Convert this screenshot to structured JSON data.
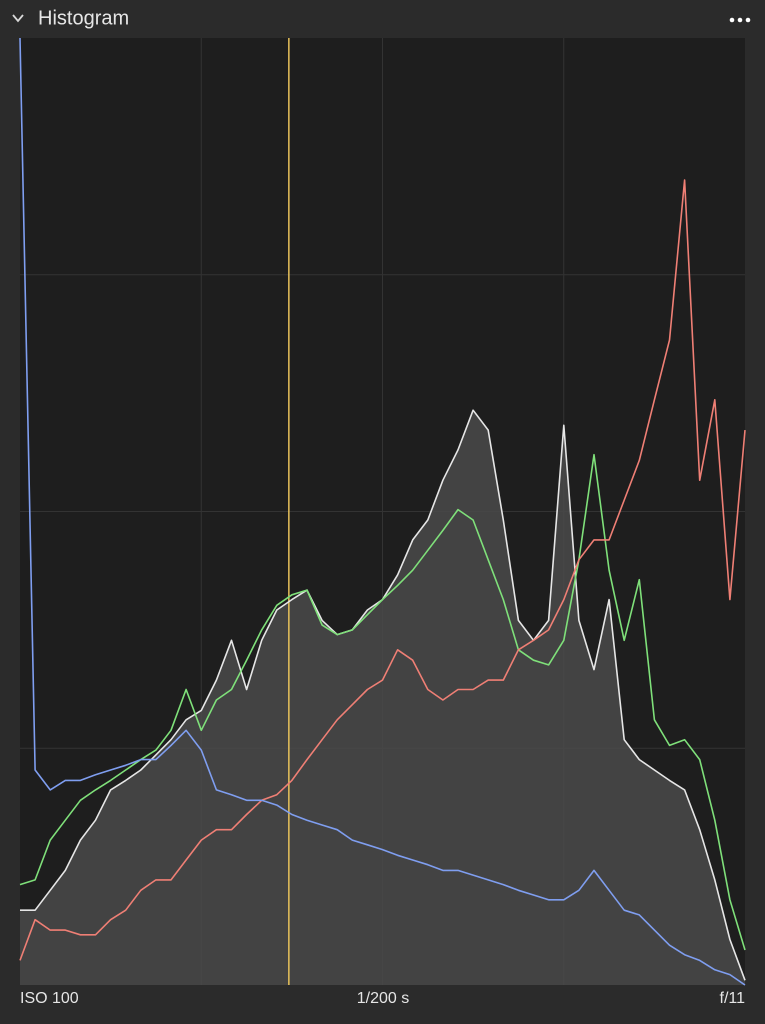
{
  "panel": {
    "title": "Histogram"
  },
  "footer": {
    "iso": "ISO 100",
    "shutter": "1/200 s",
    "aperture": "f/11"
  },
  "chart_data": {
    "type": "line",
    "x": [
      0,
      1,
      2,
      3,
      4,
      5,
      6,
      7,
      8,
      9,
      10,
      11,
      12,
      13,
      14,
      15,
      16,
      17,
      18,
      19,
      20,
      21,
      22,
      23,
      24,
      25,
      26,
      27,
      28,
      29,
      30,
      31,
      32,
      33,
      34,
      35,
      36,
      37,
      38,
      39,
      40,
      41,
      42,
      43,
      44,
      45,
      46,
      47,
      48
    ],
    "xlim": [
      0,
      48
    ],
    "ylim": [
      0,
      100
    ],
    "xticks": [
      12,
      24,
      36
    ],
    "yticks": [
      25,
      50,
      75
    ],
    "grid": true,
    "reference_line": {
      "x": 17.8,
      "color": "#e8c25a"
    },
    "series": [
      {
        "color": "#e6e6e6",
        "fill": "#4a4a4a",
        "values": [
          7.9,
          7.9,
          10.0,
          12.1,
          15.3,
          17.4,
          20.6,
          21.6,
          22.7,
          24.3,
          25.9,
          28.0,
          29.0,
          32.2,
          36.4,
          31.2,
          36.4,
          39.6,
          40.7,
          41.7,
          38.5,
          37.0,
          37.5,
          39.6,
          40.7,
          43.3,
          47.0,
          49.1,
          53.3,
          56.5,
          60.7,
          58.6,
          49.1,
          38.5,
          36.4,
          38.5,
          59.1,
          38.5,
          33.3,
          40.7,
          25.9,
          23.8,
          22.7,
          21.6,
          20.6,
          16.4,
          11.1,
          4.8,
          0.5
        ]
      },
      {
        "color": "#7fe07a",
        "values": [
          10.6,
          11.1,
          15.3,
          17.4,
          19.5,
          20.6,
          21.6,
          22.7,
          23.8,
          24.8,
          26.9,
          31.2,
          26.9,
          30.1,
          31.2,
          34.3,
          37.5,
          40.1,
          41.2,
          41.7,
          38.0,
          37.0,
          37.5,
          39.1,
          40.7,
          42.2,
          43.8,
          45.9,
          48.0,
          50.2,
          49.1,
          44.9,
          40.7,
          35.4,
          34.3,
          33.8,
          36.4,
          44.9,
          56.0,
          43.8,
          36.4,
          42.8,
          28.0,
          25.3,
          25.9,
          23.8,
          17.4,
          9.0,
          3.7
        ]
      },
      {
        "color": "#ef7f75",
        "values": [
          2.6,
          6.9,
          5.8,
          5.8,
          5.3,
          5.3,
          6.9,
          7.9,
          10.0,
          11.1,
          11.1,
          13.2,
          15.3,
          16.4,
          16.4,
          18.0,
          19.5,
          20.1,
          21.6,
          23.8,
          25.9,
          28.0,
          29.6,
          31.2,
          32.2,
          35.4,
          34.3,
          31.2,
          30.1,
          31.2,
          31.2,
          32.2,
          32.2,
          35.4,
          36.4,
          37.5,
          40.7,
          44.9,
          47.0,
          47.0,
          51.2,
          55.4,
          61.8,
          68.1,
          85.0,
          53.3,
          61.8,
          40.7,
          58.6
        ]
      },
      {
        "color": "#7f9ef0",
        "values": [
          100,
          22.7,
          20.6,
          21.6,
          21.6,
          22.2,
          22.7,
          23.2,
          23.8,
          23.8,
          25.3,
          26.9,
          24.8,
          20.6,
          20.1,
          19.5,
          19.5,
          19.0,
          18.0,
          17.4,
          16.9,
          16.4,
          15.3,
          14.8,
          14.3,
          13.7,
          13.2,
          12.7,
          12.1,
          12.1,
          11.6,
          11.1,
          10.6,
          10.0,
          9.5,
          9.0,
          9.0,
          10.0,
          12.1,
          10.0,
          7.9,
          7.4,
          5.8,
          4.2,
          3.2,
          2.6,
          1.6,
          1.1,
          0
        ]
      }
    ]
  }
}
